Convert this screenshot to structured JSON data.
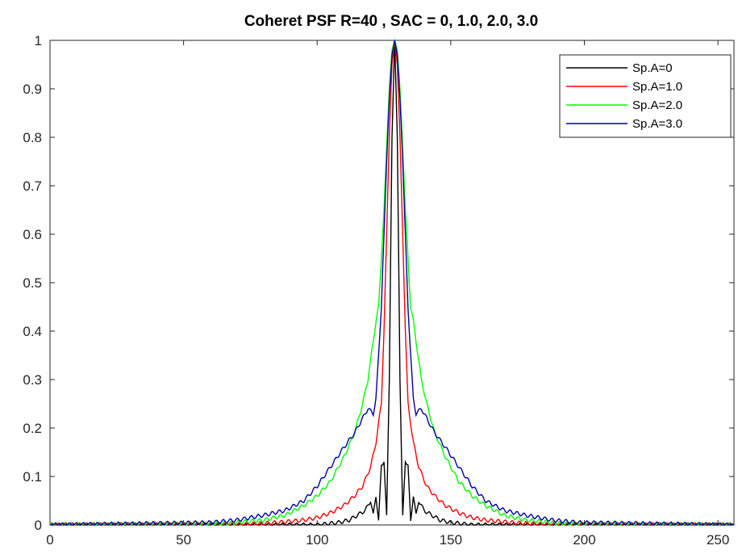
{
  "chart_data": {
    "type": "line",
    "title": "Coheret PSF R=40 , SAC = 0, 1.0, 2.0, 3.0",
    "xlabel": "",
    "ylabel": "",
    "xlim": [
      0,
      256
    ],
    "ylim": [
      0,
      1
    ],
    "xticks": [
      0,
      50,
      100,
      150,
      200,
      250
    ],
    "yticks": [
      0,
      0.1,
      0.2,
      0.3,
      0.4,
      0.5,
      0.6,
      0.7,
      0.8,
      0.9,
      1
    ],
    "grid": false,
    "legend_position": "top-right",
    "series": [
      {
        "name": "Sp.A=0",
        "color": "#000000",
        "points": [
          [
            0,
            0
          ],
          [
            100,
            0
          ],
          [
            108,
            0.005
          ],
          [
            112,
            0.01
          ],
          [
            115,
            0.02
          ],
          [
            118,
            0.03
          ],
          [
            120,
            0.05
          ],
          [
            121,
            0.02
          ],
          [
            122,
            0.06
          ],
          [
            123,
            0.01
          ],
          [
            124,
            0.12
          ],
          [
            125,
            0.13
          ],
          [
            126,
            0.02
          ],
          [
            127,
            0.3
          ],
          [
            128,
            0.8
          ],
          [
            129,
            1.0
          ],
          [
            130,
            0.8
          ],
          [
            131,
            0.3
          ],
          [
            132,
            0.02
          ],
          [
            133,
            0.13
          ],
          [
            134,
            0.12
          ],
          [
            135,
            0.01
          ],
          [
            136,
            0.06
          ],
          [
            137,
            0.02
          ],
          [
            138,
            0.05
          ],
          [
            140,
            0.03
          ],
          [
            143,
            0.02
          ],
          [
            146,
            0.01
          ],
          [
            150,
            0.005
          ],
          [
            158,
            0
          ],
          [
            256,
            0
          ]
        ]
      },
      {
        "name": "Sp.A=1.0",
        "color": "#ff0000",
        "points": [
          [
            0,
            0
          ],
          [
            75,
            0.002
          ],
          [
            85,
            0.005
          ],
          [
            95,
            0.01
          ],
          [
            100,
            0.015
          ],
          [
            105,
            0.025
          ],
          [
            110,
            0.04
          ],
          [
            114,
            0.06
          ],
          [
            117,
            0.08
          ],
          [
            120,
            0.12
          ],
          [
            122,
            0.17
          ],
          [
            124,
            0.25
          ],
          [
            125,
            0.4
          ],
          [
            126,
            0.6
          ],
          [
            127,
            0.8
          ],
          [
            128,
            0.95
          ],
          [
            129,
            1.0
          ],
          [
            130,
            0.95
          ],
          [
            131,
            0.8
          ],
          [
            132,
            0.6
          ],
          [
            133,
            0.4
          ],
          [
            134,
            0.25
          ],
          [
            136,
            0.17
          ],
          [
            138,
            0.12
          ],
          [
            141,
            0.08
          ],
          [
            144,
            0.06
          ],
          [
            148,
            0.04
          ],
          [
            153,
            0.025
          ],
          [
            158,
            0.015
          ],
          [
            163,
            0.01
          ],
          [
            173,
            0.005
          ],
          [
            183,
            0.002
          ],
          [
            256,
            0
          ]
        ]
      },
      {
        "name": "Sp.A=2.0",
        "color": "#00ff00",
        "points": [
          [
            0,
            0
          ],
          [
            60,
            0.002
          ],
          [
            70,
            0.005
          ],
          [
            80,
            0.01
          ],
          [
            88,
            0.02
          ],
          [
            95,
            0.04
          ],
          [
            100,
            0.06
          ],
          [
            105,
            0.09
          ],
          [
            110,
            0.14
          ],
          [
            114,
            0.19
          ],
          [
            117,
            0.25
          ],
          [
            119,
            0.3
          ],
          [
            121,
            0.38
          ],
          [
            122,
            0.42
          ],
          [
            123,
            0.45
          ],
          [
            124,
            0.55
          ],
          [
            125,
            0.65
          ],
          [
            126,
            0.78
          ],
          [
            127,
            0.9
          ],
          [
            128,
            0.98
          ],
          [
            129,
            1.0
          ],
          [
            130,
            0.98
          ],
          [
            131,
            0.9
          ],
          [
            132,
            0.78
          ],
          [
            133,
            0.65
          ],
          [
            134,
            0.55
          ],
          [
            135,
            0.45
          ],
          [
            136,
            0.42
          ],
          [
            137,
            0.38
          ],
          [
            139,
            0.3
          ],
          [
            141,
            0.25
          ],
          [
            144,
            0.19
          ],
          [
            148,
            0.14
          ],
          [
            153,
            0.09
          ],
          [
            158,
            0.06
          ],
          [
            163,
            0.04
          ],
          [
            170,
            0.02
          ],
          [
            178,
            0.01
          ],
          [
            188,
            0.005
          ],
          [
            198,
            0.002
          ],
          [
            256,
            0
          ]
        ]
      },
      {
        "name": "Sp.A=3.0",
        "color": "#0000aa",
        "points": [
          [
            0,
            0
          ],
          [
            60,
            0.005
          ],
          [
            70,
            0.01
          ],
          [
            80,
            0.02
          ],
          [
            88,
            0.03
          ],
          [
            95,
            0.05
          ],
          [
            100,
            0.08
          ],
          [
            105,
            0.12
          ],
          [
            110,
            0.16
          ],
          [
            114,
            0.19
          ],
          [
            117,
            0.22
          ],
          [
            119,
            0.24
          ],
          [
            121,
            0.23
          ],
          [
            122,
            0.26
          ],
          [
            123,
            0.35
          ],
          [
            124,
            0.45
          ],
          [
            125,
            0.6
          ],
          [
            126,
            0.75
          ],
          [
            127,
            0.88
          ],
          [
            128,
            0.97
          ],
          [
            129,
            1.0
          ],
          [
            130,
            0.97
          ],
          [
            131,
            0.88
          ],
          [
            132,
            0.75
          ],
          [
            133,
            0.6
          ],
          [
            134,
            0.45
          ],
          [
            135,
            0.35
          ],
          [
            136,
            0.26
          ],
          [
            137,
            0.23
          ],
          [
            139,
            0.24
          ],
          [
            141,
            0.22
          ],
          [
            144,
            0.19
          ],
          [
            148,
            0.16
          ],
          [
            153,
            0.12
          ],
          [
            158,
            0.08
          ],
          [
            163,
            0.05
          ],
          [
            170,
            0.03
          ],
          [
            178,
            0.02
          ],
          [
            188,
            0.01
          ],
          [
            198,
            0.005
          ],
          [
            256,
            0
          ]
        ]
      }
    ]
  }
}
